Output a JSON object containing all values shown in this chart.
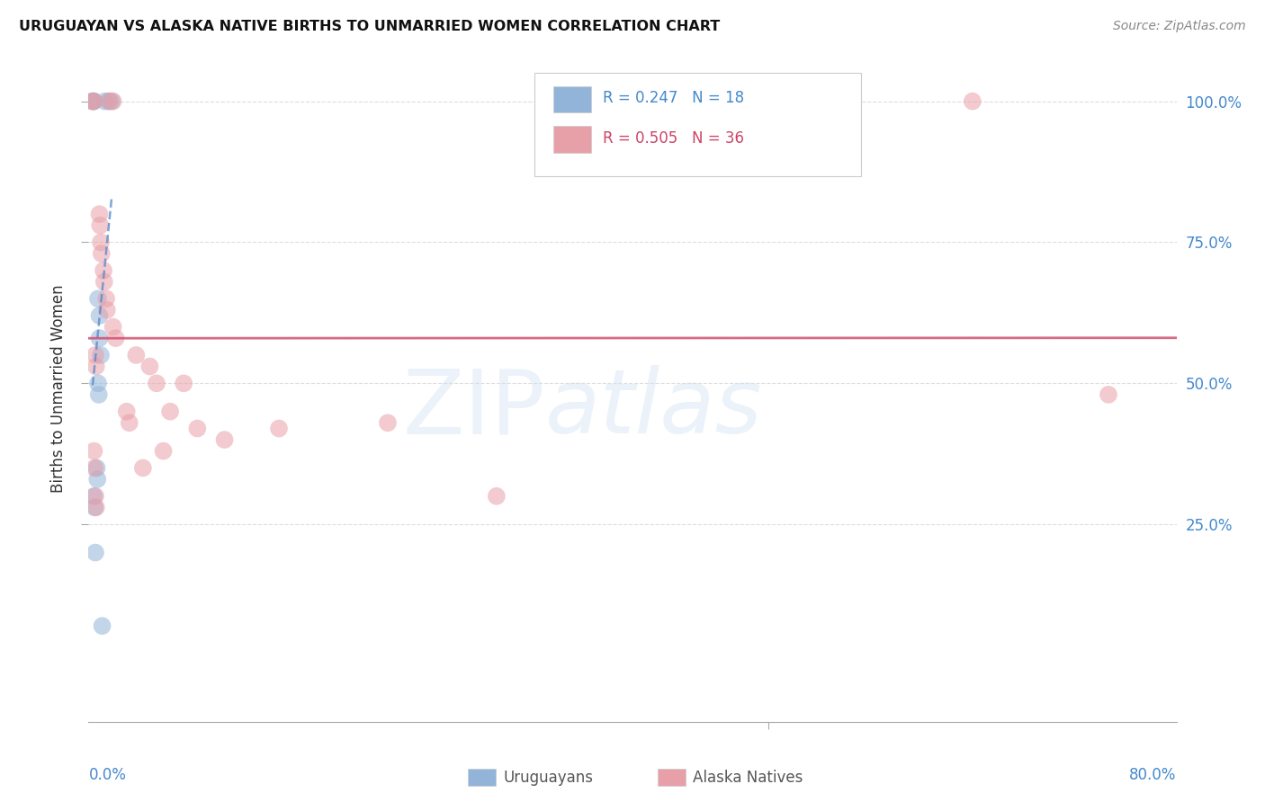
{
  "title": "URUGUAYAN VS ALASKA NATIVE BIRTHS TO UNMARRIED WOMEN CORRELATION CHART",
  "source": "Source: ZipAtlas.com",
  "ylabel": "Births to Unmarried Women",
  "blue_color": "#92b4d8",
  "pink_color": "#e8a0a8",
  "blue_line_color": "#5588cc",
  "pink_line_color": "#d05070",
  "background_color": "#ffffff",
  "grid_color": "#dddddd",
  "uruguayan_x": [
    0.3,
    0.35,
    0.4,
    1.2,
    1.5,
    1.7,
    0.7,
    0.8,
    0.8,
    0.9,
    0.7,
    0.75,
    0.6,
    0.65,
    0.4,
    0.45,
    0.5,
    1.0
  ],
  "uruguayan_y": [
    100.0,
    100.0,
    100.0,
    100.0,
    100.0,
    100.0,
    65.0,
    62.0,
    58.0,
    55.0,
    50.0,
    48.0,
    35.0,
    33.0,
    30.0,
    28.0,
    20.0,
    7.0
  ],
  "alaska_x": [
    0.3,
    0.35,
    1.5,
    1.8,
    0.8,
    0.85,
    0.9,
    0.95,
    1.1,
    1.15,
    1.3,
    1.35,
    1.8,
    2.0,
    0.5,
    0.55,
    3.5,
    4.5,
    5.0,
    2.8,
    3.0,
    0.4,
    0.45,
    6.0,
    7.0,
    10.0,
    14.0,
    22.0,
    30.0,
    0.5,
    0.55,
    4.0,
    5.5,
    8.0,
    65.0,
    75.0
  ],
  "alaska_y": [
    100.0,
    100.0,
    100.0,
    100.0,
    80.0,
    78.0,
    75.0,
    73.0,
    70.0,
    68.0,
    65.0,
    63.0,
    60.0,
    58.0,
    55.0,
    53.0,
    55.0,
    53.0,
    50.0,
    45.0,
    43.0,
    38.0,
    35.0,
    45.0,
    50.0,
    40.0,
    42.0,
    43.0,
    30.0,
    30.0,
    28.0,
    35.0,
    38.0,
    42.0,
    100.0,
    48.0
  ],
  "xlim": [
    0,
    80
  ],
  "ylim": [
    0,
    100
  ],
  "yticks": [
    25,
    50,
    75,
    100
  ],
  "xtick_mid": 50
}
